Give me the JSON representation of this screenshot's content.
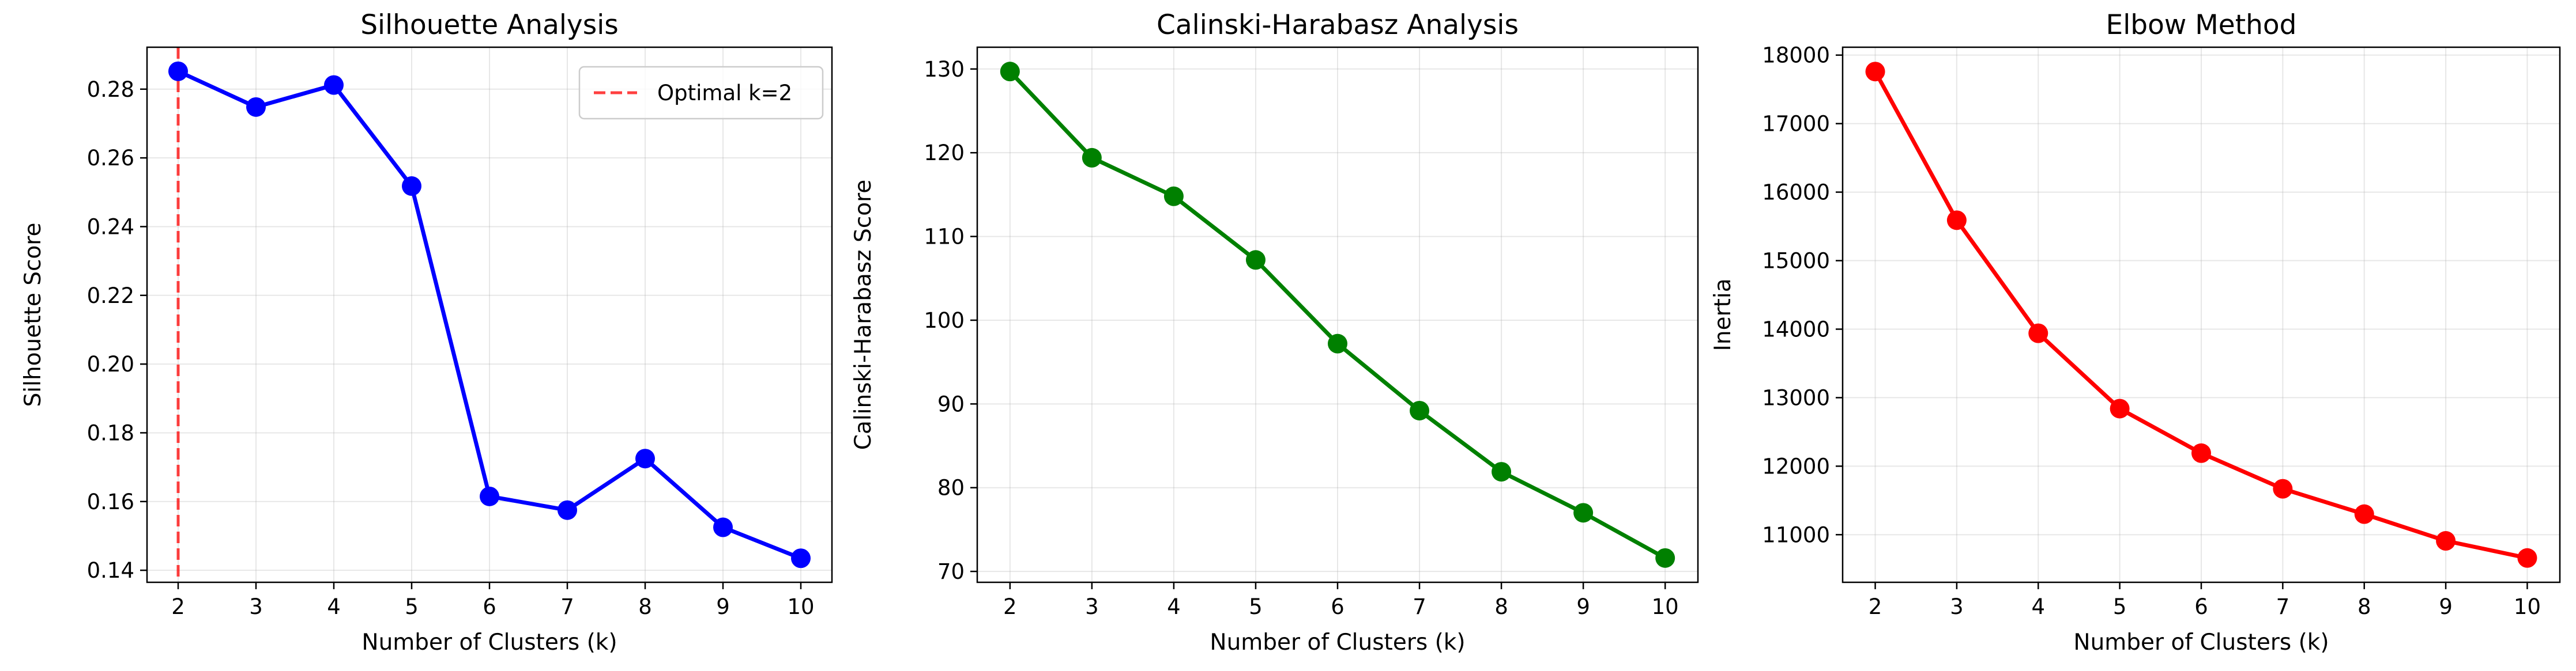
{
  "chart_data": [
    {
      "type": "line",
      "title": "Silhouette Analysis",
      "xlabel": "Number of Clusters (k)",
      "ylabel": "Silhouette Score",
      "x": [
        2,
        3,
        4,
        5,
        6,
        7,
        8,
        9,
        10
      ],
      "series": [
        {
          "values": [
            0.2852,
            0.2748,
            0.2812,
            0.2518,
            0.1615,
            0.1575,
            0.1725,
            0.1525,
            0.1435
          ],
          "color": "#0000ff"
        }
      ],
      "xlim": [
        1.6,
        10.4
      ],
      "ylim": [
        0.1365,
        0.2922
      ],
      "yticks": [
        0.14,
        0.16,
        0.18,
        0.2,
        0.22,
        0.24,
        0.26,
        0.28
      ],
      "ytick_labels": [
        "0.14",
        "0.16",
        "0.18",
        "0.20",
        "0.22",
        "0.24",
        "0.26",
        "0.28"
      ],
      "xticks": [
        2,
        3,
        4,
        5,
        6,
        7,
        8,
        9,
        10
      ],
      "vline": {
        "x": 2,
        "color": "#ff0000",
        "style": "dashed"
      },
      "legend": {
        "placement": "upper-right",
        "entries": [
          "Optimal k=2"
        ]
      },
      "grid": true
    },
    {
      "type": "line",
      "title": "Calinski-Harabasz Analysis",
      "xlabel": "Number of Clusters (k)",
      "ylabel": "Calinski-Harabasz Score",
      "x": [
        2,
        3,
        4,
        5,
        6,
        7,
        8,
        9,
        10
      ],
      "series": [
        {
          "values": [
            129.7,
            119.4,
            114.8,
            107.2,
            97.2,
            89.2,
            81.9,
            77.0,
            71.6
          ],
          "color": "#008000"
        }
      ],
      "xlim": [
        1.6,
        10.4
      ],
      "ylim": [
        68.7,
        132.6
      ],
      "yticks": [
        70,
        80,
        90,
        100,
        110,
        120,
        130
      ],
      "ytick_labels": [
        "70",
        "80",
        "90",
        "100",
        "110",
        "120",
        "130"
      ],
      "xticks": [
        2,
        3,
        4,
        5,
        6,
        7,
        8,
        9,
        10
      ],
      "grid": true
    },
    {
      "type": "line",
      "title": "Elbow Method",
      "xlabel": "Number of Clusters (k)",
      "ylabel": "Inertia",
      "x": [
        2,
        3,
        4,
        5,
        6,
        7,
        8,
        9,
        10
      ],
      "series": [
        {
          "values": [
            17760,
            15590,
            13940,
            12840,
            12190,
            11670,
            11300,
            10910,
            10660
          ],
          "color": "#ff0000"
        }
      ],
      "xlim": [
        1.6,
        10.4
      ],
      "ylim": [
        10305,
        18115
      ],
      "yticks": [
        11000,
        12000,
        13000,
        14000,
        15000,
        16000,
        17000,
        18000
      ],
      "ytick_labels": [
        "11000",
        "12000",
        "13000",
        "14000",
        "15000",
        "16000",
        "17000",
        "18000"
      ],
      "xticks": [
        2,
        3,
        4,
        5,
        6,
        7,
        8,
        9,
        10
      ],
      "grid": true
    }
  ]
}
